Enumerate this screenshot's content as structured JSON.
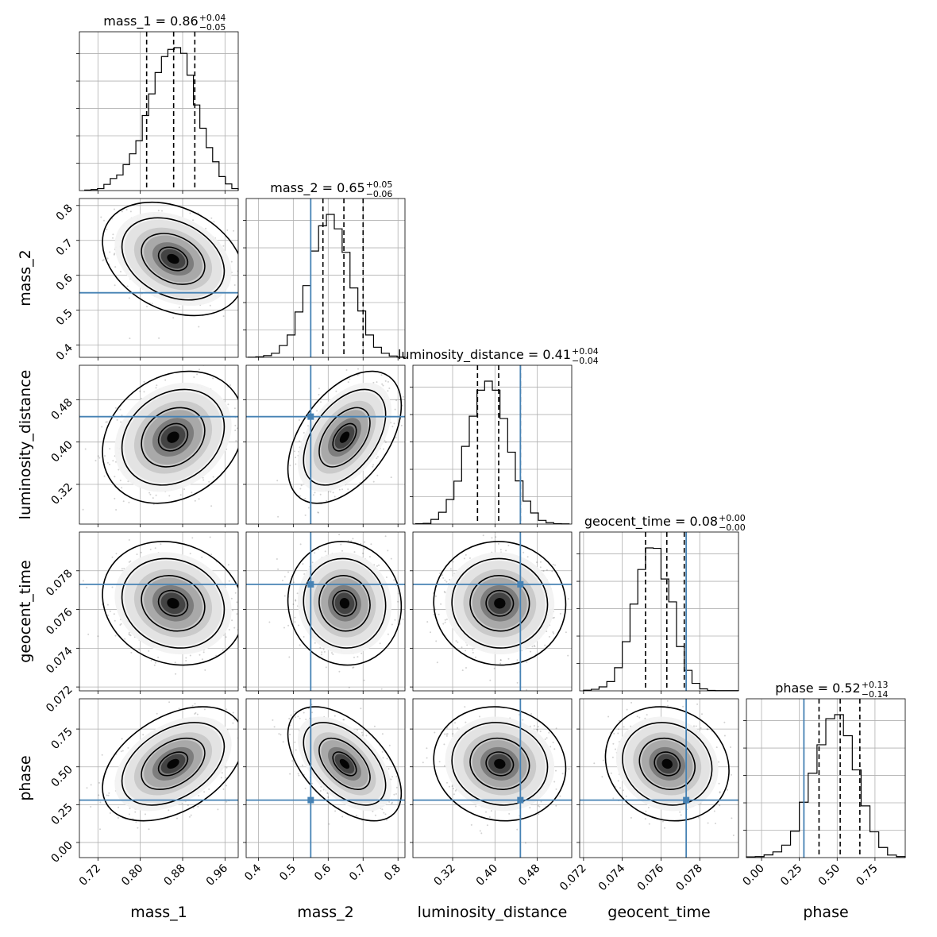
{
  "chart_data": {
    "type": "corner",
    "params": [
      "mass_1",
      "mass_2",
      "luminosity_distance",
      "geocent_time",
      "phase"
    ],
    "axis_labels": [
      "mass_1",
      "mass_2",
      "luminosity_distance",
      "geocent_time",
      "phase"
    ],
    "ranges": [
      [
        0.685,
        0.985
      ],
      [
        0.365,
        0.82
      ],
      [
        0.245,
        0.545
      ],
      [
        0.0718,
        0.08
      ],
      [
        -0.1,
        0.95
      ]
    ],
    "ticks": [
      {
        "values": [
          0.72,
          0.8,
          0.88,
          0.96
        ],
        "labels": [
          "0.72",
          "0.80",
          "0.88",
          "0.96"
        ]
      },
      {
        "values": [
          0.4,
          0.5,
          0.6,
          0.7,
          0.8
        ],
        "labels": [
          "0.4",
          "0.5",
          "0.6",
          "0.7",
          "0.8"
        ]
      },
      {
        "values": [
          0.32,
          0.4,
          0.48
        ],
        "labels": [
          "0.32",
          "0.40",
          "0.48"
        ]
      },
      {
        "values": [
          0.072,
          0.074,
          0.076,
          0.078
        ],
        "labels": [
          "0.072",
          "0.074",
          "0.076",
          "0.078"
        ]
      },
      {
        "values": [
          0.0,
          0.25,
          0.5,
          0.75
        ],
        "labels": [
          "0.00",
          "0.25",
          "0.50",
          "0.75"
        ]
      }
    ],
    "titles": [
      {
        "name": "mass_1",
        "median": "0.86",
        "plus": "+0.04",
        "minus": "−0.05"
      },
      {
        "name": "mass_2",
        "median": "0.65",
        "plus": "+0.05",
        "minus": "−0.06"
      },
      {
        "name": "luminosity_distance",
        "median": "0.41",
        "plus": "+0.04",
        "minus": "−0.04"
      },
      {
        "name": "geocent_time",
        "median": "0.08",
        "plus": "+0.00",
        "minus": "−0.00"
      },
      {
        "name": "phase",
        "median": "0.52",
        "plus": "+0.13",
        "minus": "−0.14"
      }
    ],
    "medians": [
      0.863,
      0.645,
      0.407,
      0.0763,
      0.52
    ],
    "quantiles_16_84": [
      [
        0.812,
        0.903
      ],
      [
        0.585,
        0.7
      ],
      [
        0.367,
        0.448
      ],
      [
        0.0752,
        0.0772
      ],
      [
        0.38,
        0.65
      ]
    ],
    "truths": [
      null,
      0.55,
      0.448,
      0.0773,
      0.28
    ],
    "histograms": [
      {
        "edges": [
          0.695,
          0.985
        ],
        "counts": [
          0.3,
          0.6,
          1.2,
          3.8,
          7.4,
          9.6,
          15.9,
          22.6,
          30.6,
          46.1,
          59.4,
          72.5,
          82.3,
          86.7,
          87.8,
          84.3,
          70.9,
          52.6,
          38.3,
          26.4,
          17.7,
          8.6,
          4.1,
          1.2
        ]
      },
      {
        "edges": [
          0.37,
          0.82
        ],
        "counts": [
          0.1,
          0.3,
          1.0,
          2.4,
          7.0,
          13.3,
          27.0,
          42.7,
          63.3,
          78.3,
          85.1,
          76.5,
          62.5,
          41.3,
          27.6,
          13.3,
          6.0,
          2.4,
          0.8,
          0.2
        ]
      },
      {
        "edges": [
          0.25,
          0.54
        ],
        "counts": [
          0.2,
          0.3,
          2.0,
          5.1,
          10.6,
          18.5,
          33.5,
          46.5,
          57.7,
          61.6,
          57.7,
          45.5,
          31.0,
          18.6,
          9.9,
          4.8,
          1.6,
          0.6,
          0.2,
          0.1
        ]
      },
      {
        "edges": [
          0.072,
          0.08
        ],
        "counts": [
          0.3,
          0.7,
          1.8,
          4.2,
          10.5,
          22.3,
          39.4,
          55.1,
          64.9,
          64.7,
          50.8,
          40.4,
          20.1,
          9.3,
          3.4,
          0.9,
          0.2,
          0.1,
          0.1,
          0.1
        ]
      },
      {
        "edges": [
          -0.1,
          0.95
        ],
        "counts": [
          0.4,
          0.6,
          1.6,
          3.4,
          7.4,
          15.7,
          32.9,
          50.1,
          67.0,
          82.5,
          84.9,
          72.4,
          52.1,
          30.7,
          15.3,
          6.0,
          1.5,
          0.6
        ]
      }
    ],
    "pair_stats": [
      {
        "row": 1,
        "col": 0,
        "mean": [
          0.862,
          0.647
        ],
        "sd": [
          0.046,
          0.056
        ],
        "rho": -0.3
      },
      {
        "row": 2,
        "col": 0,
        "mean": [
          0.862,
          0.409
        ],
        "sd": [
          0.046,
          0.043
        ],
        "rho": 0.22
      },
      {
        "row": 2,
        "col": 1,
        "mean": [
          0.647,
          0.409
        ],
        "sd": [
          0.056,
          0.043
        ],
        "rho": 0.48
      },
      {
        "row": 3,
        "col": 0,
        "mean": [
          0.862,
          0.07632
        ],
        "sd": [
          0.046,
          0.0011
        ],
        "rho": -0.14
      },
      {
        "row": 3,
        "col": 1,
        "mean": [
          0.647,
          0.07632
        ],
        "sd": [
          0.056,
          0.0011
        ],
        "rho": -0.05
      },
      {
        "row": 3,
        "col": 2,
        "mean": [
          0.409,
          0.07632
        ],
        "sd": [
          0.043,
          0.0011
        ],
        "rho": -0.02
      },
      {
        "row": 4,
        "col": 0,
        "mean": [
          0.862,
          0.52
        ],
        "sd": [
          0.046,
          0.13
        ],
        "rho": 0.42
      },
      {
        "row": 4,
        "col": 1,
        "mean": [
          0.647,
          0.52
        ],
        "sd": [
          0.056,
          0.13
        ],
        "rho": -0.52
      },
      {
        "row": 4,
        "col": 2,
        "mean": [
          0.409,
          0.52
        ],
        "sd": [
          0.043,
          0.13
        ],
        "rho": -0.08
      },
      {
        "row": 4,
        "col": 3,
        "mean": [
          0.07632,
          0.52
        ],
        "sd": [
          0.0011,
          0.13
        ],
        "rho": -0.12
      }
    ],
    "truth_color": "#4682b4",
    "grid": true
  }
}
